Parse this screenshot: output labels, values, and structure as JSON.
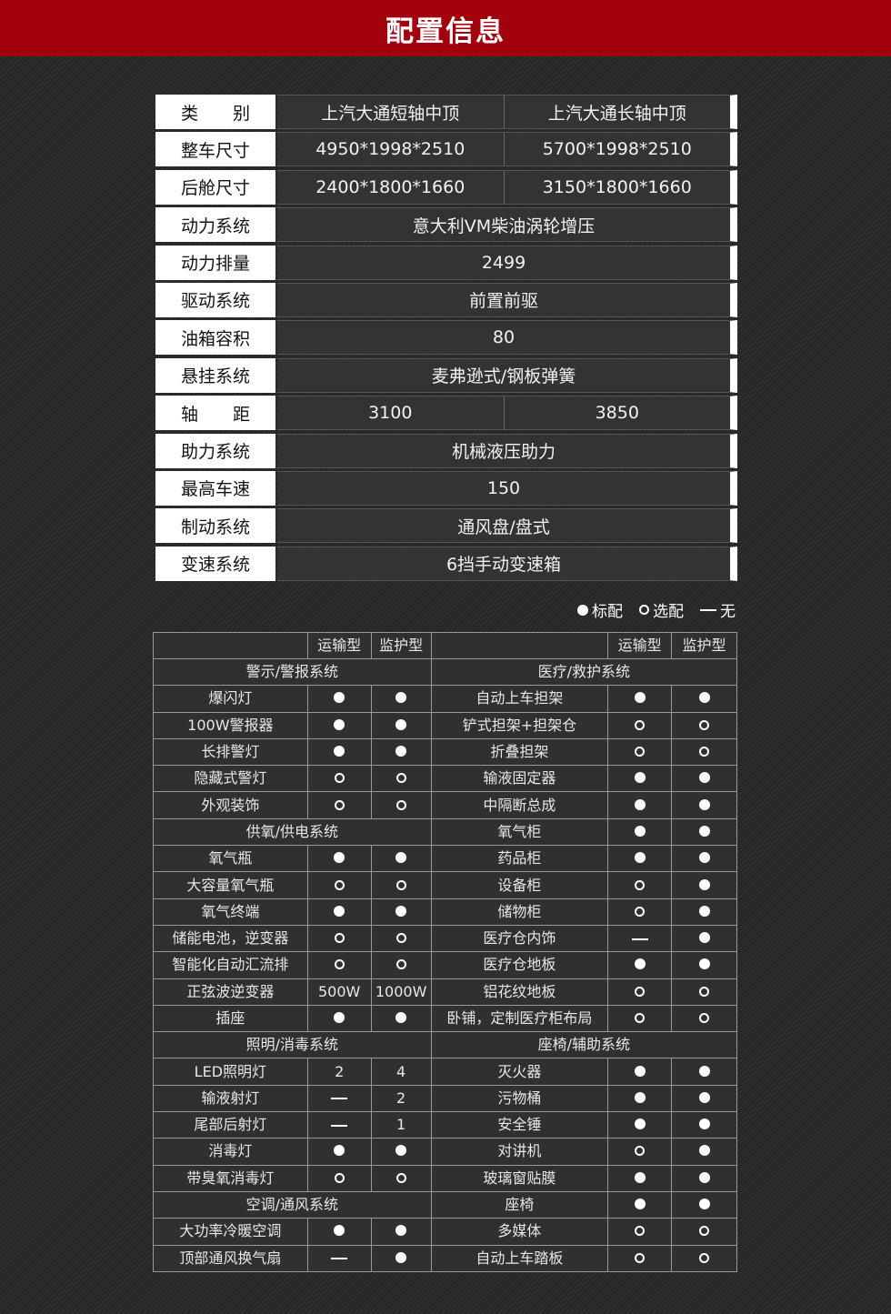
{
  "title": "配置信息",
  "spec": [
    {
      "label": "类　　别",
      "values": [
        "上汽大通短轴中顶",
        "上汽大通长轴中顶"
      ]
    },
    {
      "label": "整车尺寸",
      "values": [
        "4950*1998*2510",
        "5700*1998*2510"
      ]
    },
    {
      "label": "后舱尺寸",
      "values": [
        "2400*1800*1660",
        "3150*1800*1660"
      ]
    },
    {
      "label": "动力系统",
      "values": [
        "意大利VM柴油涡轮增压"
      ]
    },
    {
      "label": "动力排量",
      "values": [
        "2499"
      ]
    },
    {
      "label": "驱动系统",
      "values": [
        "前置前驱"
      ]
    },
    {
      "label": "油箱容积",
      "values": [
        "80"
      ]
    },
    {
      "label": "悬挂系统",
      "values": [
        "麦弗逊式/钢板弹簧"
      ]
    },
    {
      "label": "轴　　距",
      "values": [
        "3100",
        "3850"
      ]
    },
    {
      "label": "助力系统",
      "values": [
        "机械液压助力"
      ]
    },
    {
      "label": "最高车速",
      "values": [
        "150"
      ]
    },
    {
      "label": "制动系统",
      "values": [
        "通风盘/盘式"
      ]
    },
    {
      "label": "变速系统",
      "values": [
        "6挡手动变速箱"
      ]
    }
  ],
  "legend": {
    "std": "标配",
    "opt": "选配",
    "none": "无"
  },
  "config": {
    "headers": [
      "运输型",
      "监护型",
      "运输型",
      "监护型"
    ],
    "rows": [
      [
        {
          "section": "警示/警报系统"
        },
        {
          "section": "医疗/救护系统"
        }
      ],
      [
        {
          "name": "爆闪灯",
          "a": "std",
          "b": "std"
        },
        {
          "name": "自动上车担架",
          "a": "std",
          "b": "std"
        }
      ],
      [
        {
          "name": "100W警报器",
          "a": "std",
          "b": "std"
        },
        {
          "name": "铲式担架+担架仓",
          "a": "opt",
          "b": "opt"
        }
      ],
      [
        {
          "name": "长排警灯",
          "a": "std",
          "b": "std"
        },
        {
          "name": "折叠担架",
          "a": "opt",
          "b": "opt"
        }
      ],
      [
        {
          "name": "隐藏式警灯",
          "a": "opt",
          "b": "opt"
        },
        {
          "name": "输液固定器",
          "a": "std",
          "b": "std"
        }
      ],
      [
        {
          "name": "外观装饰",
          "a": "opt",
          "b": "opt"
        },
        {
          "name": "中隔断总成",
          "a": "std",
          "b": "std"
        }
      ],
      [
        {
          "section": "供氧/供电系统"
        },
        {
          "name": "氧气柜",
          "a": "std",
          "b": "std"
        }
      ],
      [
        {
          "name": "氧气瓶",
          "a": "std",
          "b": "std"
        },
        {
          "name": "药品柜",
          "a": "std",
          "b": "std"
        }
      ],
      [
        {
          "name": "大容量氧气瓶",
          "a": "opt",
          "b": "opt"
        },
        {
          "name": "设备柜",
          "a": "opt",
          "b": "std"
        }
      ],
      [
        {
          "name": "氧气终端",
          "a": "std",
          "b": "std"
        },
        {
          "name": "储物柜",
          "a": "opt",
          "b": "std"
        }
      ],
      [
        {
          "name": "储能电池，逆变器",
          "a": "opt",
          "b": "opt"
        },
        {
          "name": "医疗仓内饰",
          "a": "none",
          "b": "std"
        }
      ],
      [
        {
          "name": "智能化自动汇流排",
          "a": "opt",
          "b": "opt"
        },
        {
          "name": "医疗仓地板",
          "a": "std",
          "b": "std"
        }
      ],
      [
        {
          "name": "正弦波逆变器",
          "a": "500W",
          "b": "1000W"
        },
        {
          "name": "铝花纹地板",
          "a": "opt",
          "b": "opt"
        }
      ],
      [
        {
          "name": "插座",
          "a": "std",
          "b": "std"
        },
        {
          "name": "卧铺，定制医疗柜布局",
          "a": "opt",
          "b": "opt"
        }
      ],
      [
        {
          "section": "照明/消毒系统"
        },
        {
          "section": "座椅/辅助系统"
        }
      ],
      [
        {
          "name": "LED照明灯",
          "a": "2",
          "b": "4"
        },
        {
          "name": "灭火器",
          "a": "std",
          "b": "std"
        }
      ],
      [
        {
          "name": "输液射灯",
          "a": "none",
          "b": "2"
        },
        {
          "name": "污物桶",
          "a": "std",
          "b": "std"
        }
      ],
      [
        {
          "name": "尾部后射灯",
          "a": "none",
          "b": "1"
        },
        {
          "name": "安全锤",
          "a": "std",
          "b": "std"
        }
      ],
      [
        {
          "name": "消毒灯",
          "a": "std",
          "b": "std"
        },
        {
          "name": "对讲机",
          "a": "opt",
          "b": "std"
        }
      ],
      [
        {
          "name": "带臭氧消毒灯",
          "a": "opt",
          "b": "opt"
        },
        {
          "name": "玻璃窗贴膜",
          "a": "std",
          "b": "std"
        }
      ],
      [
        {
          "section": "空调/通风系统"
        },
        {
          "name": "座椅",
          "a": "std",
          "b": "std"
        }
      ],
      [
        {
          "name": "大功率冷暖空调",
          "a": "std",
          "b": "std"
        },
        {
          "name": "多媒体",
          "a": "opt",
          "b": "opt"
        }
      ],
      [
        {
          "name": "顶部通风换气扇",
          "a": "none",
          "b": "std"
        },
        {
          "name": "自动上车踏板",
          "a": "opt",
          "b": "opt"
        }
      ]
    ]
  },
  "colors": {
    "header": "#a3000e",
    "section": "#e5243a"
  }
}
